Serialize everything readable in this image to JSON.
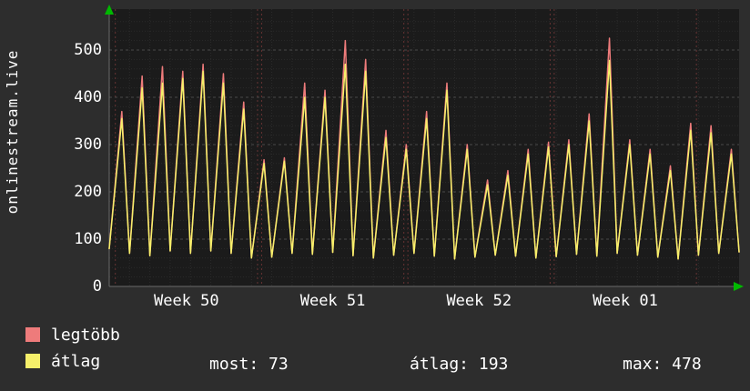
{
  "brand": "onlinestream.live",
  "chart_data": {
    "type": "line",
    "title": "",
    "xlabel": "",
    "ylabel": "",
    "x_axis": {
      "days": 31,
      "week_labels": [
        {
          "label": "Week 50",
          "day": 3.8
        },
        {
          "label": "Week 51",
          "day": 11.0
        },
        {
          "label": "Week 52",
          "day": 18.2
        },
        {
          "label": "Week 01",
          "day": 25.4
        }
      ]
    },
    "y_axis": {
      "ticks": [
        0,
        100,
        200,
        300,
        400,
        500
      ],
      "ylim": [
        0,
        540
      ],
      "grid": true
    },
    "legend_position": "bottom-left",
    "daily_troughs": [
      80,
      70,
      65,
      75,
      70,
      75,
      70,
      60,
      62,
      70,
      68,
      72,
      65,
      60,
      66,
      70,
      64,
      58,
      62,
      66,
      64,
      60,
      63,
      68,
      64,
      70,
      66,
      62,
      58,
      66,
      70,
      73
    ],
    "series": [
      {
        "name": "legtöbb",
        "color": "#ee7b7b",
        "daily_peaks": [
          370,
          445,
          465,
          455,
          470,
          450,
          390,
          268,
          272,
          430,
          415,
          520,
          480,
          330,
          300,
          370,
          430,
          300,
          225,
          245,
          290,
          305,
          310,
          365,
          525,
          310,
          290,
          255,
          345,
          340,
          290
        ]
      },
      {
        "name": "átlag",
        "color": "#f6f06a",
        "daily_peaks": [
          355,
          420,
          430,
          440,
          455,
          430,
          375,
          260,
          265,
          400,
          400,
          470,
          455,
          315,
          290,
          355,
          415,
          290,
          215,
          235,
          280,
          295,
          300,
          350,
          478,
          300,
          280,
          245,
          330,
          325,
          280
        ]
      }
    ],
    "stats": [
      {
        "label": "most:",
        "value": "73"
      },
      {
        "label": "átlag:",
        "value": "193"
      },
      {
        "label": "max:",
        "value": "478"
      }
    ],
    "colors": {
      "plot_background": "#1b1b1b",
      "minor_grid": "#2b2b2b",
      "major_grid": "#4a4a4a",
      "week_grid": "#663333",
      "axis": "#6a6a6a",
      "arrow": "#00b800",
      "text": "#ffffff"
    }
  }
}
